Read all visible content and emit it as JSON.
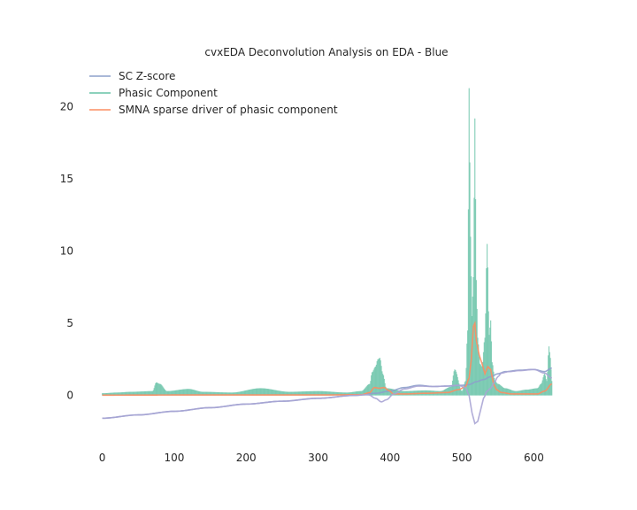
{
  "chart_data": {
    "type": "line",
    "title": "cvxEDA Deconvolution Analysis on EDA - Blue",
    "xlabel": "",
    "ylabel": "",
    "xlim": [
      -18,
      645
    ],
    "ylim": [
      -3.4,
      22.5
    ],
    "x_ticks": [
      0,
      100,
      200,
      300,
      400,
      500,
      600
    ],
    "y_ticks": [
      0,
      5,
      10,
      15,
      20
    ],
    "grid": false,
    "legend_position": "top-left",
    "series": [
      {
        "name": "SC Z-score",
        "color": "#8da0cb",
        "style": "line",
        "points": [
          [
            0,
            -1.58
          ],
          [
            50,
            -1.35
          ],
          [
            100,
            -1.1
          ],
          [
            150,
            -0.85
          ],
          [
            200,
            -0.6
          ],
          [
            250,
            -0.4
          ],
          [
            300,
            -0.2
          ],
          [
            350,
            0.0
          ],
          [
            380,
            0.15
          ],
          [
            400,
            0.3
          ],
          [
            420,
            0.55
          ],
          [
            440,
            0.7
          ],
          [
            460,
            0.62
          ],
          [
            480,
            0.65
          ],
          [
            500,
            0.7
          ],
          [
            510,
            0.75
          ],
          [
            520,
            0.95
          ],
          [
            530,
            1.1
          ],
          [
            540,
            1.3
          ],
          [
            550,
            1.5
          ],
          [
            560,
            1.65
          ],
          [
            580,
            1.75
          ],
          [
            600,
            1.8
          ],
          [
            615,
            1.65
          ],
          [
            625,
            1.9
          ]
        ]
      },
      {
        "name": "Phasic Component",
        "color": "#66c2a5",
        "style": "bars",
        "points": [
          [
            0,
            0.15
          ],
          [
            20,
            0.2
          ],
          [
            40,
            0.25
          ],
          [
            70,
            0.3
          ],
          [
            75,
            0.9
          ],
          [
            80,
            0.8
          ],
          [
            90,
            0.3
          ],
          [
            120,
            0.45
          ],
          [
            140,
            0.25
          ],
          [
            180,
            0.2
          ],
          [
            220,
            0.5
          ],
          [
            260,
            0.25
          ],
          [
            300,
            0.3
          ],
          [
            340,
            0.2
          ],
          [
            360,
            0.3
          ],
          [
            372,
            0.8
          ],
          [
            375,
            1.6
          ],
          [
            380,
            2.0
          ],
          [
            383,
            2.5
          ],
          [
            386,
            2.6
          ],
          [
            390,
            1.5
          ],
          [
            395,
            0.5
          ],
          [
            420,
            0.3
          ],
          [
            450,
            0.35
          ],
          [
            470,
            0.3
          ],
          [
            485,
            0.6
          ],
          [
            490,
            1.8
          ],
          [
            500,
            0.3
          ],
          [
            505,
            1.0
          ],
          [
            508,
            4.5
          ],
          [
            510,
            21.3
          ],
          [
            512,
            11.0
          ],
          [
            514,
            5.5
          ],
          [
            516,
            8.2
          ],
          [
            518,
            19.2
          ],
          [
            520,
            8.0
          ],
          [
            522,
            4.0
          ],
          [
            525,
            2.2
          ],
          [
            528,
            2.0
          ],
          [
            532,
            4.0
          ],
          [
            535,
            10.5
          ],
          [
            538,
            4.2
          ],
          [
            540,
            5.2
          ],
          [
            542,
            2.3
          ],
          [
            546,
            1.0
          ],
          [
            550,
            0.8
          ],
          [
            560,
            0.5
          ],
          [
            575,
            0.3
          ],
          [
            590,
            0.4
          ],
          [
            605,
            0.5
          ],
          [
            610,
            0.8
          ],
          [
            615,
            1.5
          ],
          [
            618,
            1.0
          ],
          [
            621,
            3.4
          ],
          [
            623,
            2.6
          ],
          [
            625,
            1.0
          ]
        ]
      },
      {
        "name": "SMNA sparse driver of phasic component",
        "color": "#fc8d62",
        "style": "line",
        "points": [
          [
            0,
            0.02
          ],
          [
            100,
            0.03
          ],
          [
            200,
            0.03
          ],
          [
            300,
            0.03
          ],
          [
            360,
            0.05
          ],
          [
            372,
            0.2
          ],
          [
            378,
            0.55
          ],
          [
            385,
            0.5
          ],
          [
            392,
            0.55
          ],
          [
            398,
            0.35
          ],
          [
            405,
            0.1
          ],
          [
            420,
            0.1
          ],
          [
            450,
            0.15
          ],
          [
            480,
            0.2
          ],
          [
            495,
            0.4
          ],
          [
            505,
            0.6
          ],
          [
            510,
            1.2
          ],
          [
            513,
            2.5
          ],
          [
            516,
            4.8
          ],
          [
            518,
            5.0
          ],
          [
            520,
            3.8
          ],
          [
            524,
            2.8
          ],
          [
            528,
            2.2
          ],
          [
            532,
            1.5
          ],
          [
            536,
            2.0
          ],
          [
            540,
            1.8
          ],
          [
            544,
            0.8
          ],
          [
            548,
            0.4
          ],
          [
            555,
            0.2
          ],
          [
            570,
            0.1
          ],
          [
            590,
            0.1
          ],
          [
            605,
            0.1
          ],
          [
            615,
            0.3
          ],
          [
            625,
            0.8
          ]
        ]
      },
      {
        "name": "",
        "color": "#a9a4d4",
        "style": "line",
        "points": [
          [
            0,
            -1.58
          ],
          [
            50,
            -1.35
          ],
          [
            100,
            -1.1
          ],
          [
            150,
            -0.85
          ],
          [
            200,
            -0.6
          ],
          [
            250,
            -0.4
          ],
          [
            300,
            -0.2
          ],
          [
            350,
            0.0
          ],
          [
            370,
            0.05
          ],
          [
            380,
            -0.2
          ],
          [
            388,
            -0.45
          ],
          [
            395,
            -0.3
          ],
          [
            405,
            0.1
          ],
          [
            420,
            0.45
          ],
          [
            440,
            0.65
          ],
          [
            460,
            0.62
          ],
          [
            480,
            0.65
          ],
          [
            495,
            0.7
          ],
          [
            505,
            0.55
          ],
          [
            510,
            0.0
          ],
          [
            514,
            -1.2
          ],
          [
            518,
            -1.95
          ],
          [
            522,
            -1.8
          ],
          [
            526,
            -1.0
          ],
          [
            530,
            -0.2
          ],
          [
            535,
            0.3
          ],
          [
            540,
            0.5
          ],
          [
            545,
            0.9
          ],
          [
            550,
            1.3
          ],
          [
            555,
            1.55
          ],
          [
            565,
            1.65
          ],
          [
            580,
            1.72
          ],
          [
            600,
            1.8
          ],
          [
            615,
            1.55
          ],
          [
            625,
            1.2
          ]
        ]
      }
    ]
  }
}
